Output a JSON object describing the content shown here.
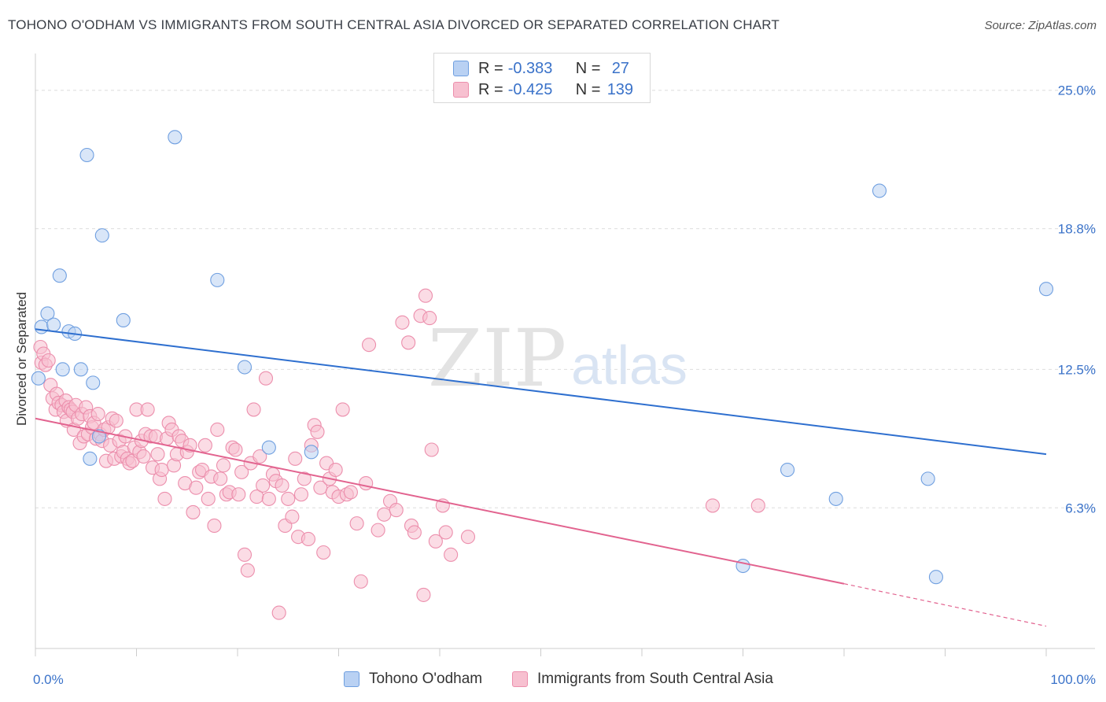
{
  "title": "TOHONO O'ODHAM VS IMMIGRANTS FROM SOUTH CENTRAL ASIA DIVORCED OR SEPARATED CORRELATION CHART",
  "source": "Source: ZipAtlas.com",
  "watermark": {
    "zip": "ZIP",
    "atlas": "atlas"
  },
  "colors": {
    "blue_fill": "#b9d1f3",
    "blue_stroke": "#6f9fe0",
    "blue_line": "#2e6fcf",
    "pink_fill": "#f7c0d0",
    "pink_stroke": "#ec8eac",
    "pink_line": "#e2638f",
    "axis_text": "#3a72c9",
    "grid": "#dddddd"
  },
  "legend": {
    "rows": [
      {
        "r_label": "R =",
        "r_value": "-0.383",
        "n_label": "N =",
        "n_value": "27"
      },
      {
        "r_label": "R =",
        "r_value": "-0.425",
        "n_label": "N =",
        "n_value": "139"
      }
    ]
  },
  "bottom_legend": [
    "Tohono O'odham",
    "Immigrants from South Central Asia"
  ],
  "chart_data": {
    "type": "scatter",
    "ylabel": "Divorced or Separated",
    "x_tick_labels": [
      "0.0%",
      "100.0%"
    ],
    "y_tick_labels": [
      "6.3%",
      "12.5%",
      "18.8%",
      "25.0%"
    ],
    "y_ticks": [
      6.3,
      12.5,
      18.8,
      25.0
    ],
    "xlim": [
      0,
      100
    ],
    "ylim": [
      0,
      26.4
    ],
    "grid": true,
    "legend_position": "top-center",
    "series": [
      {
        "name": "Tohono O'odham",
        "color": "blue",
        "trend": {
          "x0": 0,
          "y0": 14.3,
          "x1": 100,
          "y1": 8.7
        },
        "points": [
          [
            0.3,
            12.1
          ],
          [
            0.6,
            14.4
          ],
          [
            1.2,
            15.0
          ],
          [
            1.8,
            14.5
          ],
          [
            2.4,
            16.7
          ],
          [
            2.7,
            12.5
          ],
          [
            3.3,
            14.2
          ],
          [
            3.9,
            14.1
          ],
          [
            4.5,
            12.5
          ],
          [
            5.1,
            22.1
          ],
          [
            5.4,
            8.5
          ],
          [
            5.7,
            11.9
          ],
          [
            6.3,
            9.5
          ],
          [
            6.6,
            18.5
          ],
          [
            8.7,
            14.7
          ],
          [
            13.8,
            22.9
          ],
          [
            18.0,
            16.5
          ],
          [
            20.7,
            12.6
          ],
          [
            23.1,
            9.0
          ],
          [
            27.3,
            8.8
          ],
          [
            70.0,
            3.7
          ],
          [
            74.4,
            8.0
          ],
          [
            79.2,
            6.7
          ],
          [
            83.5,
            20.5
          ],
          [
            88.3,
            7.6
          ],
          [
            89.1,
            3.2
          ],
          [
            100.0,
            16.1
          ]
        ]
      },
      {
        "name": "Immigrants from South Central Asia",
        "color": "pink",
        "trend": {
          "x0": 0,
          "y0": 10.3,
          "x1": 80,
          "y1": 2.9,
          "dash_to_x": 100,
          "dash_to_y": 1.0
        },
        "points": [
          [
            0.5,
            13.5
          ],
          [
            0.6,
            12.8
          ],
          [
            0.8,
            13.2
          ],
          [
            1.0,
            12.7
          ],
          [
            1.3,
            12.9
          ],
          [
            1.5,
            11.8
          ],
          [
            1.7,
            11.2
          ],
          [
            2.0,
            10.7
          ],
          [
            2.1,
            11.4
          ],
          [
            2.3,
            11.0
          ],
          [
            2.6,
            10.9
          ],
          [
            2.8,
            10.6
          ],
          [
            3.0,
            11.1
          ],
          [
            3.1,
            10.2
          ],
          [
            3.3,
            10.8
          ],
          [
            3.5,
            10.7
          ],
          [
            3.7,
            10.6
          ],
          [
            3.8,
            9.8
          ],
          [
            4.0,
            10.9
          ],
          [
            4.2,
            10.3
          ],
          [
            4.4,
            9.2
          ],
          [
            4.6,
            10.5
          ],
          [
            4.8,
            9.5
          ],
          [
            5.0,
            10.8
          ],
          [
            5.2,
            9.6
          ],
          [
            5.4,
            10.4
          ],
          [
            5.6,
            9.9
          ],
          [
            5.8,
            10.1
          ],
          [
            6.0,
            9.4
          ],
          [
            6.2,
            10.5
          ],
          [
            6.4,
            9.6
          ],
          [
            6.6,
            9.3
          ],
          [
            6.8,
            9.8
          ],
          [
            7.0,
            8.4
          ],
          [
            7.2,
            9.9
          ],
          [
            7.4,
            9.1
          ],
          [
            7.6,
            10.3
          ],
          [
            7.8,
            8.5
          ],
          [
            8.0,
            10.2
          ],
          [
            8.3,
            9.3
          ],
          [
            8.5,
            8.6
          ],
          [
            8.7,
            8.8
          ],
          [
            8.9,
            9.5
          ],
          [
            9.1,
            8.5
          ],
          [
            9.3,
            8.3
          ],
          [
            9.6,
            8.4
          ],
          [
            9.8,
            9.0
          ],
          [
            10.0,
            10.7
          ],
          [
            10.3,
            8.8
          ],
          [
            10.5,
            9.3
          ],
          [
            10.7,
            8.6
          ],
          [
            10.9,
            9.6
          ],
          [
            11.1,
            10.7
          ],
          [
            11.4,
            9.5
          ],
          [
            11.6,
            8.1
          ],
          [
            11.9,
            9.5
          ],
          [
            12.1,
            8.7
          ],
          [
            12.3,
            7.6
          ],
          [
            12.5,
            8.0
          ],
          [
            12.8,
            6.7
          ],
          [
            13.0,
            9.4
          ],
          [
            13.2,
            10.1
          ],
          [
            13.5,
            9.8
          ],
          [
            13.7,
            8.2
          ],
          [
            14.0,
            8.7
          ],
          [
            14.2,
            9.5
          ],
          [
            14.5,
            9.3
          ],
          [
            14.8,
            7.4
          ],
          [
            15.0,
            8.8
          ],
          [
            15.3,
            9.1
          ],
          [
            15.6,
            6.1
          ],
          [
            15.9,
            7.2
          ],
          [
            16.2,
            7.9
          ],
          [
            16.5,
            8.0
          ],
          [
            16.8,
            9.1
          ],
          [
            17.1,
            6.7
          ],
          [
            17.4,
            7.7
          ],
          [
            17.7,
            5.5
          ],
          [
            18.0,
            9.8
          ],
          [
            18.3,
            7.6
          ],
          [
            18.6,
            8.2
          ],
          [
            18.9,
            6.9
          ],
          [
            19.2,
            7.0
          ],
          [
            19.5,
            9.0
          ],
          [
            19.8,
            8.9
          ],
          [
            20.1,
            6.9
          ],
          [
            20.4,
            7.9
          ],
          [
            20.7,
            4.2
          ],
          [
            21.0,
            3.5
          ],
          [
            21.3,
            8.3
          ],
          [
            21.6,
            10.7
          ],
          [
            21.9,
            6.8
          ],
          [
            22.2,
            8.6
          ],
          [
            22.5,
            7.3
          ],
          [
            22.8,
            12.1
          ],
          [
            23.1,
            6.7
          ],
          [
            23.5,
            7.8
          ],
          [
            23.8,
            7.5
          ],
          [
            24.1,
            1.6
          ],
          [
            24.4,
            7.3
          ],
          [
            24.7,
            5.5
          ],
          [
            25.0,
            6.7
          ],
          [
            25.4,
            5.9
          ],
          [
            25.7,
            8.5
          ],
          [
            26.0,
            5.0
          ],
          [
            26.3,
            6.9
          ],
          [
            26.6,
            7.6
          ],
          [
            27.0,
            4.9
          ],
          [
            27.3,
            9.1
          ],
          [
            27.6,
            10.0
          ],
          [
            27.9,
            9.7
          ],
          [
            28.2,
            7.2
          ],
          [
            28.5,
            4.3
          ],
          [
            28.8,
            8.3
          ],
          [
            29.1,
            7.6
          ],
          [
            29.4,
            7.0
          ],
          [
            29.7,
            8.0
          ],
          [
            30.0,
            6.8
          ],
          [
            30.4,
            10.7
          ],
          [
            30.8,
            6.9
          ],
          [
            31.2,
            7.0
          ],
          [
            31.8,
            5.6
          ],
          [
            32.2,
            3.0
          ],
          [
            32.7,
            7.4
          ],
          [
            33.0,
            13.6
          ],
          [
            33.9,
            5.3
          ],
          [
            34.5,
            6.0
          ],
          [
            35.1,
            6.6
          ],
          [
            35.7,
            6.2
          ],
          [
            36.3,
            14.6
          ],
          [
            36.9,
            13.7
          ],
          [
            37.2,
            5.5
          ],
          [
            37.5,
            5.2
          ],
          [
            38.1,
            14.9
          ],
          [
            38.4,
            2.4
          ],
          [
            38.6,
            15.8
          ],
          [
            39.0,
            14.8
          ],
          [
            39.2,
            8.9
          ],
          [
            39.6,
            4.8
          ],
          [
            40.3,
            6.4
          ],
          [
            40.6,
            5.2
          ],
          [
            41.1,
            4.2
          ],
          [
            42.8,
            5.0
          ],
          [
            67.0,
            6.4
          ],
          [
            71.5,
            6.4
          ]
        ]
      }
    ]
  }
}
